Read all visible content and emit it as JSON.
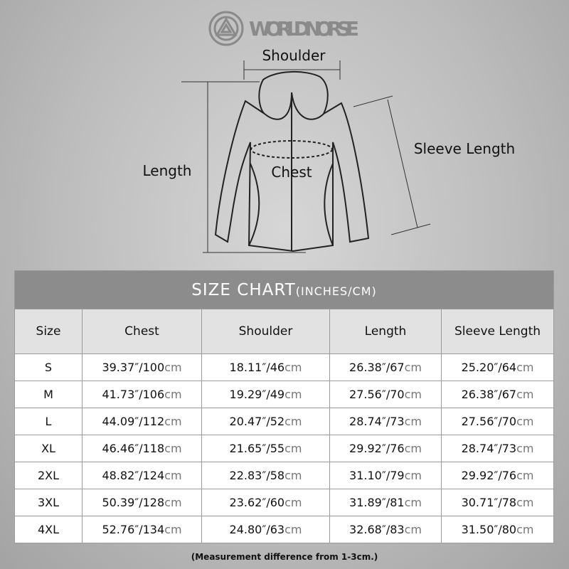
{
  "brand": "WORLDNORSE",
  "diagram": {
    "shoulder": "Shoulder",
    "length": "Length",
    "chest": "Chest",
    "sleeve": "Sleeve Length"
  },
  "table": {
    "title": "SIZE CHART",
    "title_unit": "(INCHES/CM)",
    "header": [
      "Size",
      "Chest",
      "Shoulder",
      "Length",
      "Sleeve Length"
    ],
    "rows": [
      [
        "S",
        {
          "value": "39.37″/100",
          "unit": "cm"
        },
        {
          "value": "18.11″/46",
          "unit": "cm"
        },
        {
          "value": "26.38″/67",
          "unit": "cm"
        },
        {
          "value": "25.20″/64",
          "unit": "cm"
        }
      ],
      [
        "M",
        {
          "value": "41.73″/106",
          "unit": "cm"
        },
        {
          "value": "19.29″/49",
          "unit": "cm"
        },
        {
          "value": "27.56″/70",
          "unit": "cm"
        },
        {
          "value": "26.38″/67",
          "unit": "cm"
        }
      ],
      [
        "L",
        {
          "value": "44.09″/112",
          "unit": "cm"
        },
        {
          "value": "20.47″/52",
          "unit": "cm"
        },
        {
          "value": "28.74″/73",
          "unit": "cm"
        },
        {
          "value": "27.56″/70",
          "unit": "cm"
        }
      ],
      [
        "XL",
        {
          "value": "46.46″/118",
          "unit": "cm"
        },
        {
          "value": "21.65″/55",
          "unit": "cm"
        },
        {
          "value": "29.92″/76",
          "unit": "cm"
        },
        {
          "value": "28.74″/73",
          "unit": "cm"
        }
      ],
      [
        "2XL",
        {
          "value": "48.82″/124",
          "unit": "cm"
        },
        {
          "value": "22.83″/58",
          "unit": "cm"
        },
        {
          "value": "31.10″/79",
          "unit": "cm"
        },
        {
          "value": "29.92″/76",
          "unit": "cm"
        }
      ],
      [
        "3XL",
        {
          "value": "50.39″/128",
          "unit": "cm"
        },
        {
          "value": "23.62″/60",
          "unit": "cm"
        },
        {
          "value": "31.89″/81",
          "unit": "cm"
        },
        {
          "value": "30.71″/78",
          "unit": "cm"
        }
      ],
      [
        "4XL",
        {
          "value": "52.76″/134",
          "unit": "cm"
        },
        {
          "value": "24.80″/63",
          "unit": "cm"
        },
        {
          "value": "32.68″/83",
          "unit": "cm"
        },
        {
          "value": "31.50″/80",
          "unit": "cm"
        }
      ]
    ]
  },
  "footnote": "(Measurement difference from 1-3cm.)"
}
